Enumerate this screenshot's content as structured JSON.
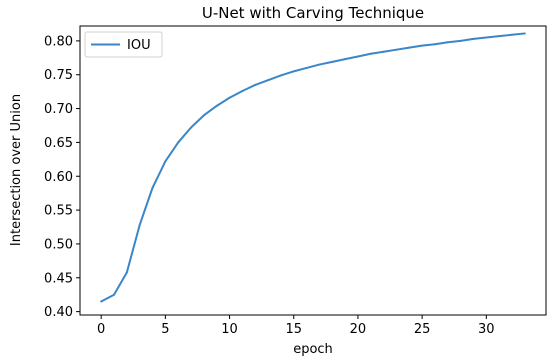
{
  "chart_data": {
    "type": "line",
    "title": "U-Net with Carving Technique",
    "xlabel": "epoch",
    "ylabel": "Intersection over Union",
    "xlim": [
      -1.65,
      34.65
    ],
    "ylim": [
      0.395,
      0.822
    ],
    "xticks": [
      0,
      5,
      10,
      15,
      20,
      25,
      30
    ],
    "yticks": [
      0.4,
      0.45,
      0.5,
      0.55,
      0.6,
      0.65,
      0.7,
      0.75,
      0.8
    ],
    "xtick_labels": [
      "0",
      "5",
      "10",
      "15",
      "20",
      "25",
      "30"
    ],
    "ytick_labels": [
      "0.40",
      "0.45",
      "0.50",
      "0.55",
      "0.60",
      "0.65",
      "0.70",
      "0.75",
      "0.80"
    ],
    "grid": false,
    "legend_position": "top-left",
    "series": [
      {
        "name": "IOU",
        "color": "#3a86c8",
        "x": [
          0,
          1,
          2,
          3,
          4,
          5,
          6,
          7,
          8,
          9,
          10,
          11,
          12,
          13,
          14,
          15,
          16,
          17,
          18,
          19,
          20,
          21,
          22,
          23,
          24,
          25,
          26,
          27,
          28,
          29,
          30,
          31,
          32,
          33
        ],
        "y": [
          0.415,
          0.425,
          0.458,
          0.528,
          0.583,
          0.622,
          0.65,
          0.672,
          0.69,
          0.704,
          0.716,
          0.726,
          0.735,
          0.742,
          0.749,
          0.755,
          0.76,
          0.765,
          0.769,
          0.773,
          0.777,
          0.781,
          0.784,
          0.787,
          0.79,
          0.793,
          0.795,
          0.798,
          0.8,
          0.803,
          0.805,
          0.807,
          0.809,
          0.811
        ]
      }
    ]
  }
}
